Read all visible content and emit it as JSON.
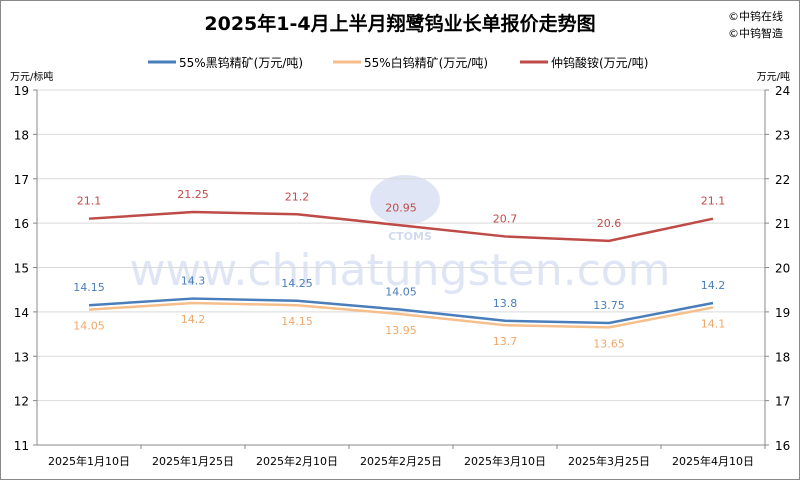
{
  "chart_data": {
    "type": "line",
    "title": "2025年1-4月上半月翔鹭钨业长单报价走势图",
    "credits": [
      "©中钨在线",
      "©中钨智造"
    ],
    "watermark": "www.chinatungsten.com",
    "watermark_logo": "CTOMS",
    "categories": [
      "2025年1月10日",
      "2025年1月25日",
      "2025年2月10日",
      "2025年2月25日",
      "2025年3月10日",
      "2025年3月25日",
      "2025年4月10日"
    ],
    "y_left": {
      "label": "万元/标吨",
      "range": [
        11,
        19
      ],
      "ticks": [
        "11",
        "12",
        "13",
        "14",
        "15",
        "16",
        "17",
        "18",
        "19"
      ]
    },
    "y_right": {
      "label": "万元/吨",
      "range": [
        16,
        24
      ],
      "ticks": [
        "16",
        "17",
        "18",
        "19",
        "20",
        "21",
        "22",
        "23",
        "24"
      ]
    },
    "grid": true,
    "legend_position": "top",
    "series": [
      {
        "name": "55%黑钨精矿(万元/吨)",
        "axis": "left",
        "color": "#4a7ebb",
        "values": [
          14.15,
          14.3,
          14.25,
          14.05,
          13.8,
          13.75,
          14.2
        ],
        "labels": [
          "14.15",
          "14.3",
          "14.25",
          "14.05",
          "13.8",
          "13.75",
          "14.2"
        ]
      },
      {
        "name": "55%白钨精矿(万元/吨)",
        "axis": "left",
        "color": "#f5be8a",
        "values": [
          14.05,
          14.2,
          14.15,
          13.95,
          13.7,
          13.65,
          14.1
        ],
        "labels": [
          "14.05",
          "14.2",
          "14.15",
          "13.95",
          "13.7",
          "13.65",
          "14.1"
        ]
      },
      {
        "name": "仲钨酸铵(万元/吨)",
        "axis": "right",
        "color": "#be4b48",
        "values": [
          21.1,
          21.25,
          21.2,
          20.95,
          20.7,
          20.6,
          21.1
        ],
        "labels": [
          "21.1",
          "21.25",
          "21.2",
          "20.95",
          "20.7",
          "20.6",
          "21.1"
        ]
      }
    ]
  }
}
